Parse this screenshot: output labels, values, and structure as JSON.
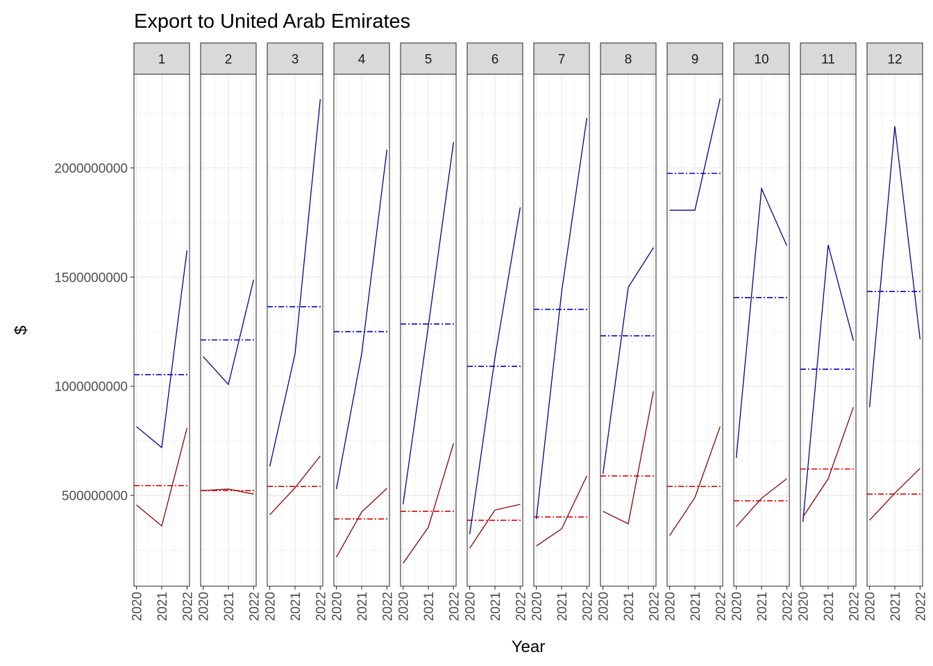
{
  "title": "Export to United Arab Emirates",
  "x_label": "Year",
  "y_label": "$",
  "chart_data": [
    {
      "type": "line",
      "title": "1",
      "x": [
        2020,
        2021,
        2022
      ],
      "xlim": [
        2019.9,
        2022.1
      ],
      "xticks": [
        2020,
        2021,
        2022
      ],
      "minor_xticks": [
        2020.5,
        2021.5
      ],
      "ylim": [
        84000000,
        2429000000
      ],
      "yticks": [
        500000000,
        1000000000,
        1500000000,
        2000000000
      ],
      "minor_yticks": [
        250000000,
        750000000,
        1250000000,
        1750000000,
        2250000000
      ],
      "grid": true,
      "series": [
        {
          "color": "#00008b",
          "values": [
            815000000,
            719000000,
            1622000000
          ]
        },
        {
          "color": "#8b0000",
          "values": [
            456000000,
            360000000,
            808000000
          ]
        }
      ],
      "reference_lines": [
        {
          "color": "#0000cd",
          "value": 1053000000
        },
        {
          "color": "#e00000",
          "value": 545000000
        }
      ]
    },
    {
      "type": "line",
      "title": "2",
      "x": [
        2020,
        2021,
        2022
      ],
      "xlim": [
        2019.9,
        2022.1
      ],
      "xticks": [
        2020,
        2021,
        2022
      ],
      "minor_xticks": [
        2020.5,
        2021.5
      ],
      "ylim": [
        84000000,
        2429000000
      ],
      "yticks": [
        500000000,
        1000000000,
        1500000000,
        2000000000
      ],
      "minor_yticks": [
        250000000,
        750000000,
        1250000000,
        1750000000,
        2250000000
      ],
      "grid": true,
      "series": [
        {
          "color": "#00008b",
          "values": [
            1136000000,
            1008000000,
            1488000000
          ]
        },
        {
          "color": "#8b0000",
          "values": [
            522000000,
            529000000,
            506000000
          ]
        }
      ],
      "reference_lines": [
        {
          "color": "#0000cd",
          "value": 1212000000
        },
        {
          "color": "#e00000",
          "value": 522000000
        }
      ]
    },
    {
      "type": "line",
      "title": "3",
      "x": [
        2020,
        2021,
        2022
      ],
      "xlim": [
        2019.9,
        2022.1
      ],
      "xticks": [
        2020,
        2021,
        2022
      ],
      "minor_xticks": [
        2020.5,
        2021.5
      ],
      "ylim": [
        84000000,
        2429000000
      ],
      "yticks": [
        500000000,
        1000000000,
        1500000000,
        2000000000
      ],
      "minor_yticks": [
        250000000,
        750000000,
        1250000000,
        1750000000,
        2250000000
      ],
      "grid": true,
      "series": [
        {
          "color": "#00008b",
          "values": [
            633000000,
            1148000000,
            2315000000
          ]
        },
        {
          "color": "#8b0000",
          "values": [
            411000000,
            535000000,
            681000000
          ]
        }
      ],
      "reference_lines": [
        {
          "color": "#0000cd",
          "value": 1364000000
        },
        {
          "color": "#e00000",
          "value": 541000000
        }
      ]
    },
    {
      "type": "line",
      "title": "4",
      "x": [
        2020,
        2021,
        2022
      ],
      "xlim": [
        2019.9,
        2022.1
      ],
      "xticks": [
        2020,
        2021,
        2022
      ],
      "minor_xticks": [
        2020.5,
        2021.5
      ],
      "ylim": [
        84000000,
        2429000000
      ],
      "yticks": [
        500000000,
        1000000000,
        1500000000,
        2000000000
      ],
      "minor_yticks": [
        250000000,
        750000000,
        1250000000,
        1750000000,
        2250000000
      ],
      "grid": true,
      "series": [
        {
          "color": "#00008b",
          "values": [
            529000000,
            1148000000,
            2083000000
          ]
        },
        {
          "color": "#8b0000",
          "values": [
            217000000,
            424000000,
            532000000
          ]
        }
      ],
      "reference_lines": [
        {
          "color": "#0000cd",
          "value": 1250000000
        },
        {
          "color": "#e00000",
          "value": 392000000
        }
      ]
    },
    {
      "type": "line",
      "title": "5",
      "x": [
        2020,
        2021,
        2022
      ],
      "xlim": [
        2019.9,
        2022.1
      ],
      "xticks": [
        2020,
        2021,
        2022
      ],
      "minor_xticks": [
        2020.5,
        2021.5
      ],
      "ylim": [
        84000000,
        2429000000
      ],
      "yticks": [
        500000000,
        1000000000,
        1500000000,
        2000000000
      ],
      "minor_yticks": [
        250000000,
        750000000,
        1250000000,
        1750000000,
        2250000000
      ],
      "grid": true,
      "series": [
        {
          "color": "#00008b",
          "values": [
            459000000,
            1275000000,
            2118000000
          ]
        },
        {
          "color": "#8b0000",
          "values": [
            189000000,
            354000000,
            738000000
          ]
        }
      ],
      "reference_lines": [
        {
          "color": "#0000cd",
          "value": 1285000000
        },
        {
          "color": "#e00000",
          "value": 427000000
        }
      ]
    },
    {
      "type": "line",
      "title": "6",
      "x": [
        2020,
        2021,
        2022
      ],
      "xlim": [
        2019.9,
        2022.1
      ],
      "xticks": [
        2020,
        2021,
        2022
      ],
      "minor_xticks": [
        2020.5,
        2021.5
      ],
      "ylim": [
        84000000,
        2429000000
      ],
      "yticks": [
        500000000,
        1000000000,
        1500000000,
        2000000000
      ],
      "minor_yticks": [
        250000000,
        750000000,
        1250000000,
        1750000000,
        2250000000
      ],
      "grid": true,
      "series": [
        {
          "color": "#00008b",
          "values": [
            322000000,
            1132000000,
            1819000000
          ]
        },
        {
          "color": "#8b0000",
          "values": [
            258000000,
            433000000,
            459000000
          ]
        }
      ],
      "reference_lines": [
        {
          "color": "#0000cd",
          "value": 1091000000
        },
        {
          "color": "#e00000",
          "value": 386000000
        }
      ]
    },
    {
      "type": "line",
      "title": "7",
      "x": [
        2020,
        2021,
        2022
      ],
      "xlim": [
        2019.9,
        2022.1
      ],
      "xticks": [
        2020,
        2021,
        2022
      ],
      "minor_xticks": [
        2020.5,
        2021.5
      ],
      "ylim": [
        84000000,
        2429000000
      ],
      "yticks": [
        500000000,
        1000000000,
        1500000000,
        2000000000
      ],
      "minor_yticks": [
        250000000,
        750000000,
        1250000000,
        1750000000,
        2250000000
      ],
      "grid": true,
      "series": [
        {
          "color": "#00008b",
          "values": [
            392000000,
            1431000000,
            2229000000
          ]
        },
        {
          "color": "#8b0000",
          "values": [
            268000000,
            347000000,
            589000000
          ]
        }
      ],
      "reference_lines": [
        {
          "color": "#0000cd",
          "value": 1352000000
        },
        {
          "color": "#e00000",
          "value": 401000000
        }
      ]
    },
    {
      "type": "line",
      "title": "8",
      "x": [
        2020,
        2021,
        2022
      ],
      "xlim": [
        2019.9,
        2022.1
      ],
      "xticks": [
        2020,
        2021,
        2022
      ],
      "minor_xticks": [
        2020.5,
        2021.5
      ],
      "ylim": [
        84000000,
        2429000000
      ],
      "yticks": [
        500000000,
        1000000000,
        1500000000,
        2000000000
      ],
      "minor_yticks": [
        250000000,
        750000000,
        1250000000,
        1750000000,
        2250000000
      ],
      "grid": true,
      "series": [
        {
          "color": "#00008b",
          "values": [
            599000000,
            1453000000,
            1635000000
          ]
        },
        {
          "color": "#8b0000",
          "values": [
            427000000,
            370000000,
            977000000
          ]
        }
      ],
      "reference_lines": [
        {
          "color": "#0000cd",
          "value": 1231000000
        },
        {
          "color": "#e00000",
          "value": 589000000
        }
      ]
    },
    {
      "type": "line",
      "title": "9",
      "x": [
        2020,
        2021,
        2022
      ],
      "xlim": [
        2019.9,
        2022.1
      ],
      "xticks": [
        2020,
        2021,
        2022
      ],
      "minor_xticks": [
        2020.5,
        2021.5
      ],
      "ylim": [
        84000000,
        2429000000
      ],
      "yticks": [
        500000000,
        1000000000,
        1500000000,
        2000000000
      ],
      "minor_yticks": [
        250000000,
        750000000,
        1250000000,
        1750000000,
        2250000000
      ],
      "grid": true,
      "series": [
        {
          "color": "#00008b",
          "values": [
            1806000000,
            1806000000,
            2318000000
          ]
        },
        {
          "color": "#8b0000",
          "values": [
            316000000,
            490000000,
            815000000
          ]
        }
      ],
      "reference_lines": [
        {
          "color": "#0000cd",
          "value": 1975000000
        },
        {
          "color": "#e00000",
          "value": 541000000
        }
      ]
    },
    {
      "type": "line",
      "title": "10",
      "x": [
        2020,
        2021,
        2022
      ],
      "xlim": [
        2019.9,
        2022.1
      ],
      "xticks": [
        2020,
        2021,
        2022
      ],
      "minor_xticks": [
        2020.5,
        2021.5
      ],
      "ylim": [
        84000000,
        2429000000
      ],
      "yticks": [
        500000000,
        1000000000,
        1500000000,
        2000000000
      ],
      "minor_yticks": [
        250000000,
        750000000,
        1250000000,
        1750000000,
        2250000000
      ],
      "grid": true,
      "series": [
        {
          "color": "#00008b",
          "values": [
            672000000,
            1905000000,
            1644000000
          ]
        },
        {
          "color": "#8b0000",
          "values": [
            357000000,
            487000000,
            576000000
          ]
        }
      ],
      "reference_lines": [
        {
          "color": "#0000cd",
          "value": 1406000000
        },
        {
          "color": "#e00000",
          "value": 475000000
        }
      ]
    },
    {
      "type": "line",
      "title": "11",
      "x": [
        2020,
        2021,
        2022
      ],
      "xlim": [
        2019.9,
        2022.1
      ],
      "xticks": [
        2020,
        2021,
        2022
      ],
      "minor_xticks": [
        2020.5,
        2021.5
      ],
      "ylim": [
        84000000,
        2429000000
      ],
      "yticks": [
        500000000,
        1000000000,
        1500000000,
        2000000000
      ],
      "minor_yticks": [
        250000000,
        750000000,
        1250000000,
        1750000000,
        2250000000
      ],
      "grid": true,
      "series": [
        {
          "color": "#00008b",
          "values": [
            379000000,
            1647000000,
            1209000000
          ]
        },
        {
          "color": "#8b0000",
          "values": [
            401000000,
            576000000,
            904000000
          ]
        }
      ],
      "reference_lines": [
        {
          "color": "#0000cd",
          "value": 1078000000
        },
        {
          "color": "#e00000",
          "value": 621000000
        }
      ]
    },
    {
      "type": "line",
      "title": "12",
      "x": [
        2020,
        2021,
        2022
      ],
      "xlim": [
        2019.9,
        2022.1
      ],
      "xticks": [
        2020,
        2021,
        2022
      ],
      "minor_xticks": [
        2020.5,
        2021.5
      ],
      "ylim": [
        84000000,
        2429000000
      ],
      "yticks": [
        500000000,
        1000000000,
        1500000000,
        2000000000
      ],
      "minor_yticks": [
        250000000,
        750000000,
        1250000000,
        1750000000,
        2250000000
      ],
      "grid": true,
      "series": [
        {
          "color": "#00008b",
          "values": [
            904000000,
            2191000000,
            1215000000
          ]
        },
        {
          "color": "#8b0000",
          "values": [
            386000000,
            510000000,
            624000000
          ]
        }
      ],
      "reference_lines": [
        {
          "color": "#0000cd",
          "value": 1434000000
        },
        {
          "color": "#e00000",
          "value": 506000000
        }
      ]
    }
  ]
}
